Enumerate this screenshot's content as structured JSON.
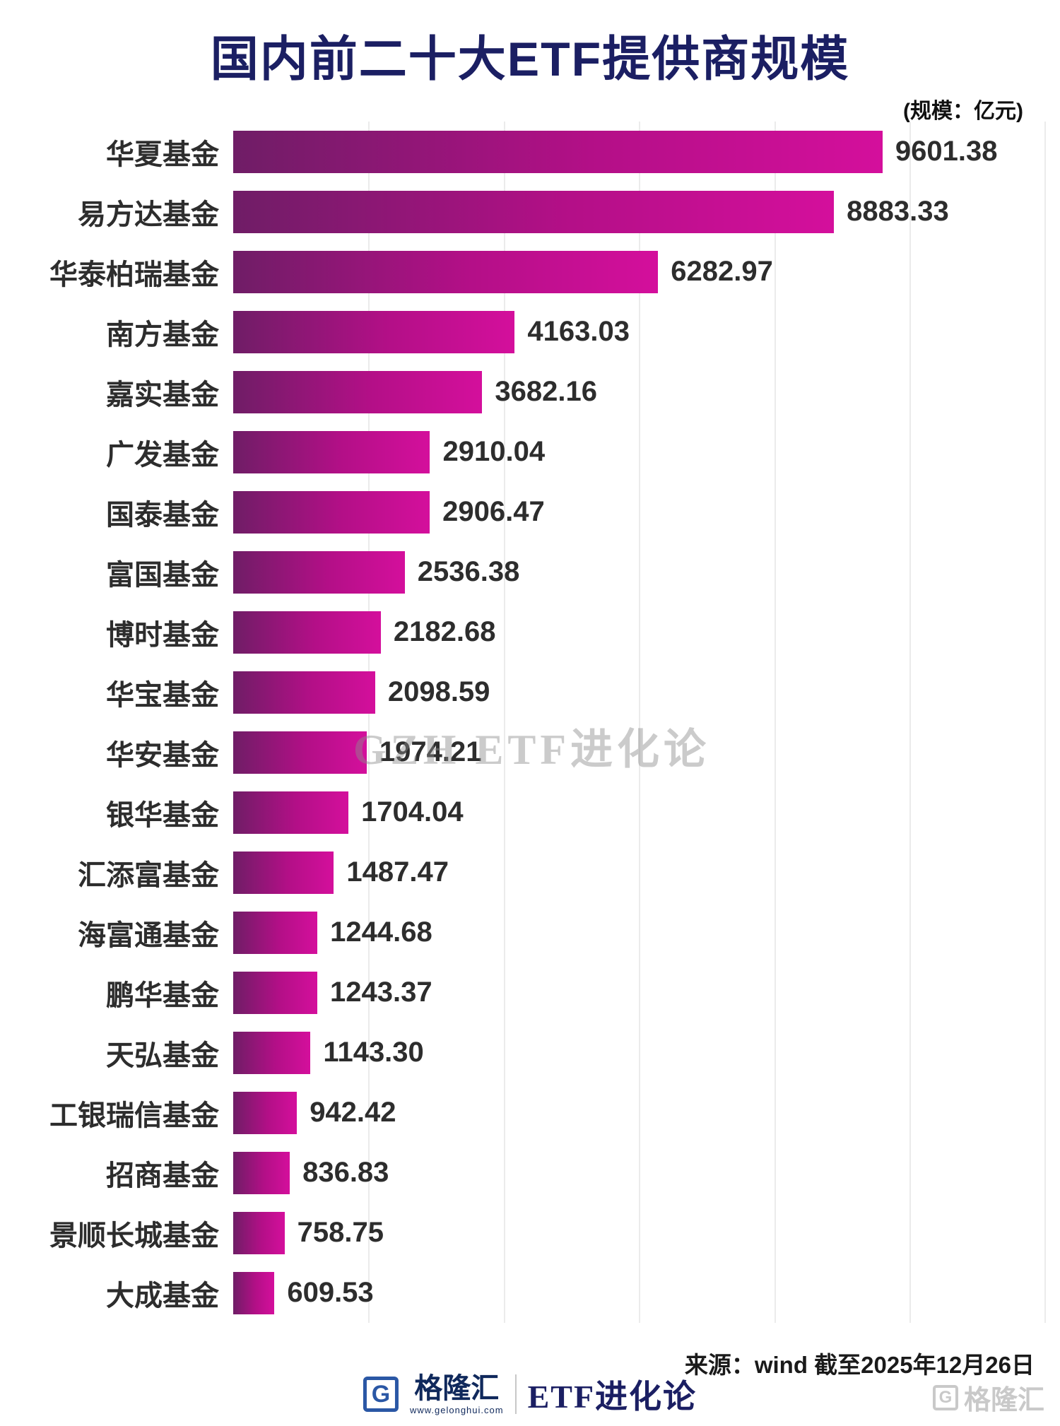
{
  "title": "国内前二十大ETF提供商规模",
  "unit_label": "(规模：亿元)",
  "watermark": "GZH ETF进化论",
  "source": "来源：wind  截至2025年12月26日",
  "footer": {
    "logo_letter": "G",
    "brand_name": "格隆汇",
    "brand_url": "www.gelonghui.com",
    "brand_right": "ETF进化论",
    "corner_logo_letter": "G",
    "corner_name": "格隆汇"
  },
  "colors": {
    "title": "#1b1f63",
    "bar_gradient_start": "#6f1d66",
    "bar_gradient_end": "#d40f9c",
    "gridline": "#ebebeb",
    "text": "#2d2d2d"
  },
  "chart_data": {
    "type": "bar",
    "orientation": "horizontal",
    "title": "国内前二十大ETF提供商规模",
    "unit": "亿元",
    "xlim": [
      0,
      12000
    ],
    "gridline_step": 2000,
    "grid": true,
    "legend": false,
    "categories": [
      "华夏基金",
      "易方达基金",
      "华泰柏瑞基金",
      "南方基金",
      "嘉实基金",
      "广发基金",
      "国泰基金",
      "富国基金",
      "博时基金",
      "华宝基金",
      "华安基金",
      "银华基金",
      "汇添富基金",
      "海富通基金",
      "鹏华基金",
      "天弘基金",
      "工银瑞信基金",
      "招商基金",
      "景顺长城基金",
      "大成基金"
    ],
    "values": [
      9601.38,
      8883.33,
      6282.97,
      4163.03,
      3682.16,
      2910.04,
      2906.47,
      2536.38,
      2182.68,
      2098.59,
      1974.21,
      1704.04,
      1487.47,
      1244.68,
      1243.37,
      1143.3,
      942.42,
      836.83,
      758.75,
      609.53
    ],
    "value_labels": [
      "9601.38",
      "8883.33",
      "6282.97",
      "4163.03",
      "3682.16",
      "2910.04",
      "2906.47",
      "2536.38",
      "2182.68",
      "2098.59",
      "1974.21",
      "1704.04",
      "1487.47",
      "1244.68",
      "1243.37",
      "1143.30",
      "942.42",
      "836.83",
      "758.75",
      "609.53"
    ]
  }
}
